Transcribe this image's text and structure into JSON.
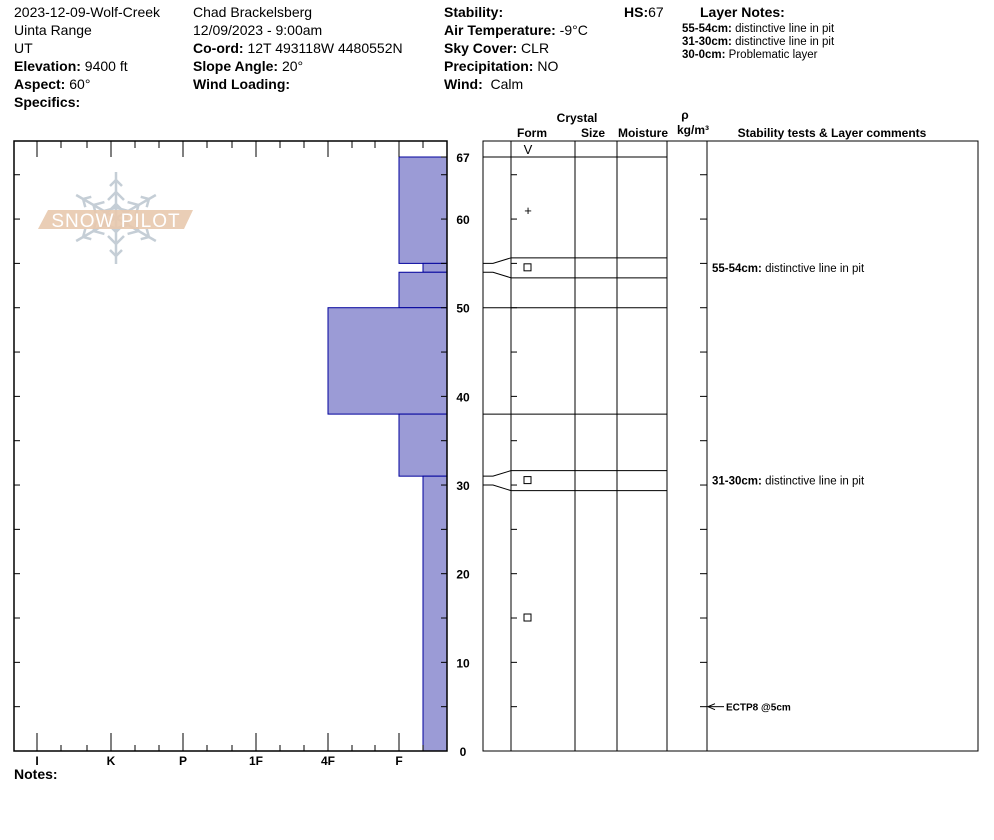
{
  "header": {
    "col1": {
      "pit_name": "2023-12-09-Wolf-Creek",
      "range": "Uinta Range",
      "state": "UT",
      "elevation_label": "Elevation:",
      "elevation": "9400 ft",
      "aspect_label": "Aspect:",
      "aspect": "60°",
      "specifics_label": "Specifics:"
    },
    "col2": {
      "observer": "Chad Brackelsberg",
      "datetime": "12/09/2023 - 9:00am",
      "coord_label": "Co-ord:",
      "coord": "12T 493118W 4480552N",
      "slope_label": "Slope Angle:",
      "slope": "20°",
      "wind_loading_label": "Wind Loading:"
    },
    "col3": {
      "stability_label": "Stability:",
      "air_temp_label": "Air Temperature:",
      "air_temp": "-9°C",
      "sky_label": "Sky Cover:",
      "sky": "CLR",
      "precip_label": "Precipitation:",
      "precip": "NO",
      "wind_label": "Wind:",
      "wind": "Calm"
    },
    "hs_label": "HS:",
    "hs": "67",
    "layer_notes_title": "Layer Notes:",
    "layer_notes": [
      {
        "range": "55-54cm:",
        "text": "distinctive line in pit"
      },
      {
        "range": "31-30cm:",
        "text": "distinctive line in pit"
      },
      {
        "range": "30-0cm:",
        "text": "Problematic layer"
      }
    ]
  },
  "logo": {
    "text": "SNOW PILOT"
  },
  "notes_label": "Notes:",
  "table_headers": {
    "crystal": "Crystal",
    "form": "Form",
    "size": "Size",
    "moisture": "Moisture",
    "rho": "ρ",
    "density_unit": "kg/m³",
    "comments": "Stability tests & Layer comments"
  },
  "chart_data": {
    "type": "bar",
    "title": "",
    "ylim": [
      0,
      67
    ],
    "y_ticks": [
      0,
      10,
      20,
      30,
      40,
      50,
      60,
      67
    ],
    "hardness_scale": [
      "I",
      "K",
      "P",
      "1F",
      "4F",
      "F"
    ],
    "colors": {
      "layer_fill": "#9b9bd6",
      "layer_stroke": "#00009c",
      "logo_band": "#e8c9ae",
      "logo_flake": "#c5ced6"
    },
    "layers": [
      {
        "top": 67,
        "bottom": 55,
        "hardness": "F"
      },
      {
        "top": 55,
        "bottom": 54,
        "hardness": "F-"
      },
      {
        "top": 54,
        "bottom": 50,
        "hardness": "F"
      },
      {
        "top": 50,
        "bottom": 38,
        "hardness": "4F"
      },
      {
        "top": 38,
        "bottom": 31,
        "hardness": "F"
      },
      {
        "top": 31,
        "bottom": 0,
        "hardness": "F-"
      }
    ],
    "table_boundaries": [
      67,
      55,
      54,
      50,
      38,
      31,
      30,
      0
    ],
    "grain_forms": [
      {
        "depth": "surface",
        "symbol": "V",
        "name": "surface-hoar"
      },
      {
        "depth": 61,
        "symbol": "+",
        "name": "precipitation-particles"
      },
      {
        "depth": 54.5,
        "symbol": "□",
        "name": "faceted-crystals"
      },
      {
        "depth": 30.5,
        "symbol": "□",
        "name": "faceted-crystals"
      },
      {
        "depth": 15,
        "symbol": "□",
        "name": "faceted-crystals"
      }
    ],
    "stability_tests": [
      {
        "depth": 5,
        "label": "ECTP8 @5cm"
      }
    ],
    "layer_comments": [
      {
        "top": 55,
        "bottom": 54,
        "range": "55-54cm:",
        "text": "distinctive line in pit"
      },
      {
        "top": 31,
        "bottom": 30,
        "range": "31-30cm:",
        "text": "distinctive line in pit"
      }
    ]
  }
}
